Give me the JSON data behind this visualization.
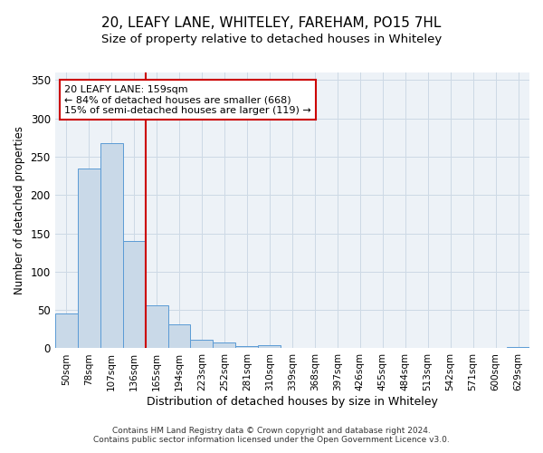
{
  "title": "20, LEAFY LANE, WHITELEY, FAREHAM, PO15 7HL",
  "subtitle": "Size of property relative to detached houses in Whiteley",
  "xlabel": "Distribution of detached houses by size in Whiteley",
  "ylabel": "Number of detached properties",
  "footer_line1": "Contains HM Land Registry data © Crown copyright and database right 2024.",
  "footer_line2": "Contains public sector information licensed under the Open Government Licence v3.0.",
  "bar_labels": [
    "50sqm",
    "78sqm",
    "107sqm",
    "136sqm",
    "165sqm",
    "194sqm",
    "223sqm",
    "252sqm",
    "281sqm",
    "310sqm",
    "339sqm",
    "368sqm",
    "397sqm",
    "426sqm",
    "455sqm",
    "484sqm",
    "513sqm",
    "542sqm",
    "571sqm",
    "600sqm",
    "629sqm"
  ],
  "bar_values": [
    46,
    235,
    268,
    140,
    56,
    31,
    11,
    8,
    3,
    4,
    0,
    0,
    0,
    0,
    0,
    0,
    0,
    0,
    0,
    0,
    2
  ],
  "bar_color": "#c9d9e8",
  "bar_edgecolor": "#5b9bd5",
  "grid_color": "#cdd9e5",
  "background_color": "#edf2f7",
  "vline_color": "#cc0000",
  "vline_x_index": 4,
  "annotation_text": "20 LEAFY LANE: 159sqm\n← 84% of detached houses are smaller (668)\n15% of semi-detached houses are larger (119) →",
  "annotation_box_edgecolor": "#cc0000",
  "ylim": [
    0,
    360
  ],
  "yticks": [
    0,
    50,
    100,
    150,
    200,
    250,
    300,
    350
  ],
  "title_fontsize": 11,
  "subtitle_fontsize": 9.5
}
